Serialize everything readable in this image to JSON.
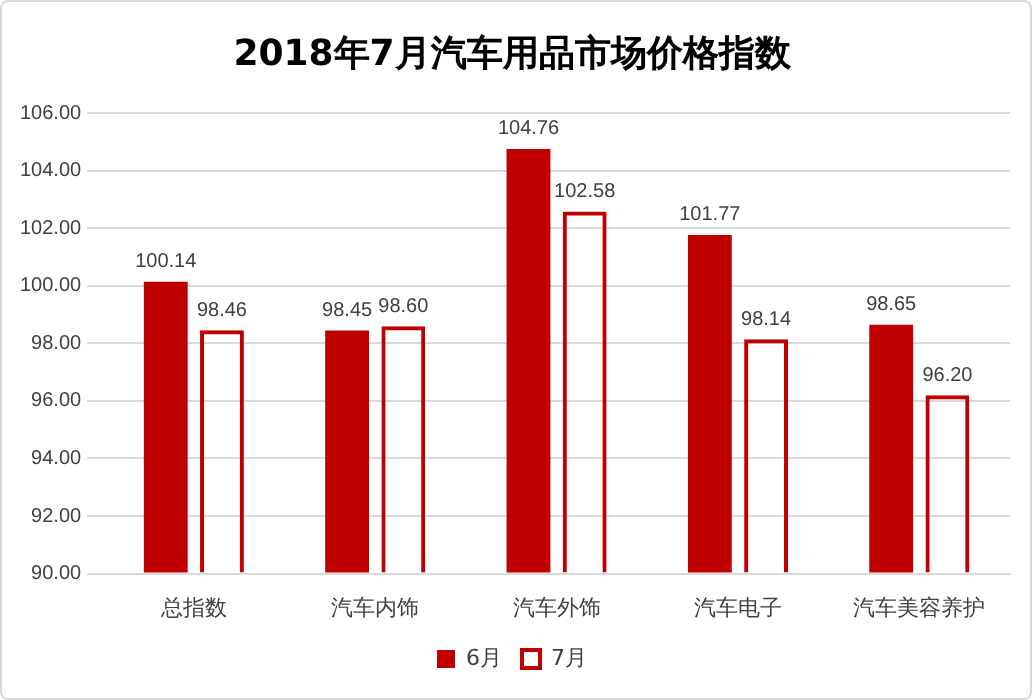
{
  "chart_data": {
    "type": "bar",
    "title": "2018年7月汽车用品市场价格指数",
    "categories": [
      "总指数",
      "汽车内饰",
      "汽车外饰",
      "汽车电子",
      "汽车美容养护"
    ],
    "series": [
      {
        "name": "6月",
        "color": "#c00000",
        "values": [
          100.14,
          98.45,
          104.76,
          101.77,
          98.65
        ],
        "value_labels": [
          "100.14",
          "98.45",
          "104.76",
          "101.77",
          "98.65"
        ]
      },
      {
        "name": "7月",
        "color": "#c00000",
        "values": [
          98.46,
          98.6,
          102.58,
          98.14,
          96.2
        ],
        "value_labels": [
          "98.46",
          "98.60",
          "102.58",
          "98.14",
          "96.20"
        ]
      }
    ],
    "ylim": [
      90,
      106
    ],
    "yticks": [
      {
        "value": 90,
        "label": "90.00"
      },
      {
        "value": 92,
        "label": "92.00"
      },
      {
        "value": 94,
        "label": "94.00"
      },
      {
        "value": 96,
        "label": "96.00"
      },
      {
        "value": 98,
        "label": "98.00"
      },
      {
        "value": 100,
        "label": "100.00"
      },
      {
        "value": 102,
        "label": "102.00"
      },
      {
        "value": 104,
        "label": "104.00"
      },
      {
        "value": 106,
        "label": "106.00"
      }
    ],
    "grid": "y",
    "legend": "bottom"
  }
}
